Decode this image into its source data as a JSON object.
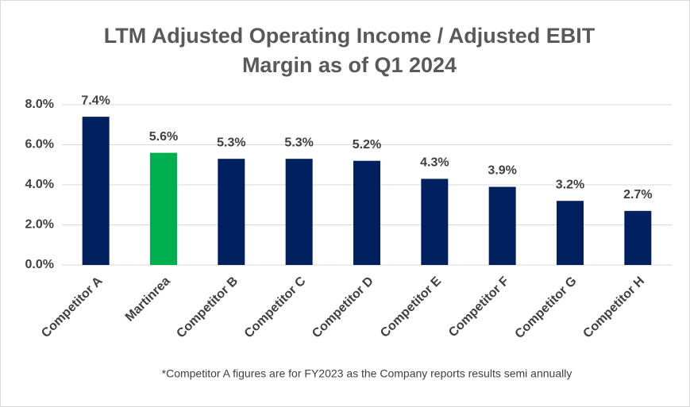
{
  "chart_data": {
    "type": "bar",
    "title": [
      "LTM Adjusted Operating Income / Adjusted EBIT",
      "Margin as of Q1 2024"
    ],
    "categories": [
      "Competitor A",
      "Martinrea",
      "Competitor B",
      "Competitor C",
      "Competitor D",
      "Competitor E",
      "Competitor F",
      "Competitor G",
      "Competitor H"
    ],
    "values": [
      7.4,
      5.6,
      5.3,
      5.3,
      5.2,
      4.3,
      3.9,
      3.2,
      2.7
    ],
    "value_labels": [
      "7.4%",
      "5.6%",
      "5.3%",
      "5.3%",
      "5.2%",
      "4.3%",
      "3.9%",
      "3.2%",
      "2.7%"
    ],
    "colors": [
      "#002060",
      "#00b050",
      "#002060",
      "#002060",
      "#002060",
      "#002060",
      "#002060",
      "#002060",
      "#002060"
    ],
    "ylim": [
      0,
      8
    ],
    "yticks": [
      {
        "value": 0,
        "label": "0.0%"
      },
      {
        "value": 2,
        "label": "2.0%"
      },
      {
        "value": 4,
        "label": "4.0%"
      },
      {
        "value": 6,
        "label": "6.0%"
      },
      {
        "value": 8,
        "label": "8.0%"
      }
    ],
    "grid": true,
    "footnote": "*Competitor A figures are for FY2023 as the Company reports results semi annually"
  }
}
